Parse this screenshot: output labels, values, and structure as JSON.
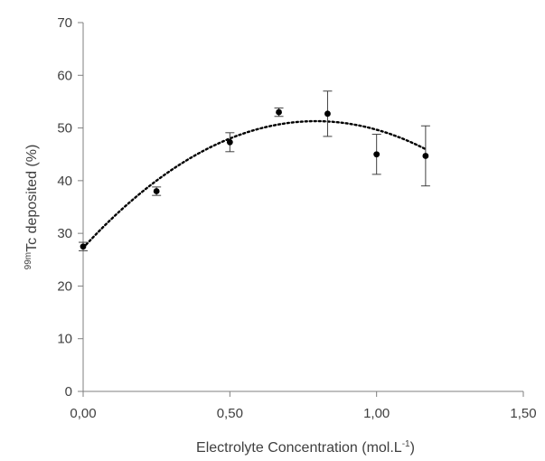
{
  "chart_data": {
    "type": "scatter",
    "title": "",
    "xlabel": "Electrolyte Concentration (mol.L",
    "xlabel_sup": "-1",
    "xlabel_suffix": ")",
    "ylabel_sup": "99m",
    "ylabel": "Tc deposited (%)",
    "xlim": [
      0,
      1.5
    ],
    "ylim": [
      0,
      70
    ],
    "x_ticks": [
      0,
      0.5,
      1.0,
      1.5
    ],
    "x_tick_labels": [
      "0,00",
      "0,50",
      "1,00",
      "1,50"
    ],
    "y_ticks": [
      0,
      10,
      20,
      30,
      40,
      50,
      60,
      70
    ],
    "y_tick_labels": [
      "0",
      "10",
      "20",
      "30",
      "40",
      "50",
      "60",
      "70"
    ],
    "grid": false,
    "series": [
      {
        "x": [
          0,
          0.25,
          0.5,
          0.667,
          0.833,
          1.0,
          1.167
        ],
        "y": [
          27.5,
          38.0,
          47.3,
          53.0,
          52.7,
          45.0,
          44.7
        ],
        "error": [
          0.8,
          0.8,
          1.8,
          0.8,
          4.3,
          3.8,
          5.7
        ],
        "color": "#000000"
      }
    ],
    "trendline": {
      "style": "dotted",
      "polynomial_order": 2,
      "coefficients": [
        27.24,
        60.6,
        -38.17
      ],
      "x_range": [
        0,
        1.167
      ],
      "color": "#000000"
    }
  }
}
